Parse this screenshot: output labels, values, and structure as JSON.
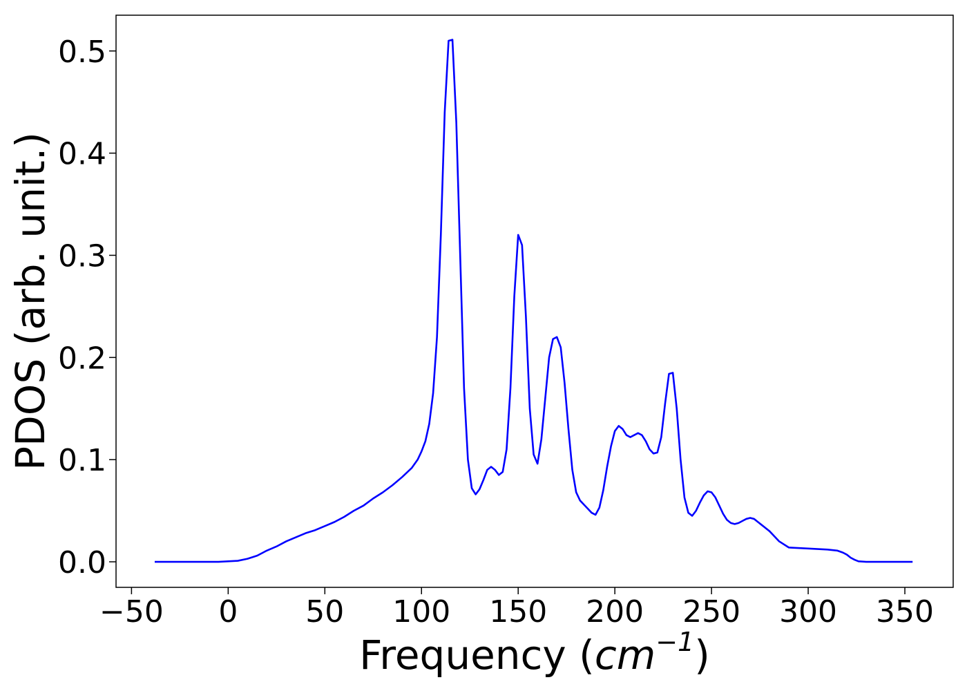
{
  "chart_data": {
    "type": "line",
    "title": "",
    "xlabel": "Frequency",
    "xlabel_unit_base": "cm",
    "xlabel_unit_exponent": "−1",
    "ylabel": "PDOS (arb. unit.)",
    "xlim": [
      -58,
      375
    ],
    "ylim": [
      -0.025,
      0.535
    ],
    "xticks": [
      -50,
      0,
      50,
      100,
      150,
      200,
      250,
      300,
      350
    ],
    "xtick_labels": [
      "−50",
      "0",
      "50",
      "100",
      "150",
      "200",
      "250",
      "300",
      "350"
    ],
    "yticks": [
      0.0,
      0.1,
      0.2,
      0.3,
      0.4,
      0.5
    ],
    "ytick_labels": [
      "0.0",
      "0.1",
      "0.2",
      "0.3",
      "0.4",
      "0.5"
    ],
    "grid": false,
    "legend": "none",
    "series": [
      {
        "color": "#0000ff",
        "x": [
          -38,
          -20,
          -5,
          0,
          5,
          10,
          15,
          20,
          25,
          30,
          35,
          40,
          45,
          50,
          55,
          60,
          65,
          70,
          75,
          80,
          85,
          90,
          95,
          98,
          100,
          102,
          104,
          106,
          108,
          110,
          112,
          114,
          116,
          118,
          120,
          122,
          124,
          126,
          128,
          130,
          132,
          134,
          136,
          138,
          140,
          142,
          144,
          146,
          148,
          150,
          152,
          154,
          156,
          158,
          160,
          162,
          164,
          166,
          168,
          170,
          172,
          174,
          176,
          178,
          180,
          182,
          184,
          186,
          188,
          190,
          192,
          194,
          196,
          198,
          200,
          202,
          204,
          206,
          208,
          210,
          212,
          214,
          216,
          218,
          220,
          222,
          224,
          226,
          228,
          230,
          232,
          234,
          236,
          238,
          240,
          242,
          244,
          246,
          248,
          250,
          252,
          254,
          256,
          258,
          260,
          262,
          264,
          266,
          268,
          270,
          272,
          274,
          276,
          280,
          285,
          290,
          300,
          310,
          315,
          318,
          320,
          322,
          324,
          326,
          330,
          340,
          354
        ],
        "y": [
          0.0,
          0.0,
          0.0,
          0.0005,
          0.001,
          0.003,
          0.006,
          0.011,
          0.015,
          0.02,
          0.024,
          0.028,
          0.031,
          0.035,
          0.039,
          0.044,
          0.05,
          0.055,
          0.062,
          0.068,
          0.075,
          0.083,
          0.092,
          0.1,
          0.108,
          0.118,
          0.135,
          0.165,
          0.22,
          0.32,
          0.44,
          0.51,
          0.511,
          0.43,
          0.3,
          0.17,
          0.1,
          0.072,
          0.066,
          0.071,
          0.08,
          0.09,
          0.093,
          0.09,
          0.085,
          0.088,
          0.11,
          0.17,
          0.26,
          0.32,
          0.31,
          0.24,
          0.15,
          0.105,
          0.096,
          0.12,
          0.16,
          0.2,
          0.218,
          0.22,
          0.21,
          0.175,
          0.13,
          0.09,
          0.068,
          0.06,
          0.056,
          0.052,
          0.048,
          0.046,
          0.053,
          0.07,
          0.093,
          0.113,
          0.128,
          0.133,
          0.13,
          0.124,
          0.122,
          0.124,
          0.126,
          0.124,
          0.118,
          0.11,
          0.106,
          0.107,
          0.122,
          0.155,
          0.184,
          0.185,
          0.15,
          0.1,
          0.063,
          0.048,
          0.045,
          0.05,
          0.058,
          0.065,
          0.069,
          0.068,
          0.063,
          0.055,
          0.047,
          0.041,
          0.038,
          0.037,
          0.038,
          0.04,
          0.042,
          0.043,
          0.042,
          0.039,
          0.036,
          0.03,
          0.02,
          0.014,
          0.013,
          0.012,
          0.011,
          0.009,
          0.007,
          0.004,
          0.002,
          0.0005,
          0.0,
          0.0,
          0.0
        ]
      }
    ]
  }
}
